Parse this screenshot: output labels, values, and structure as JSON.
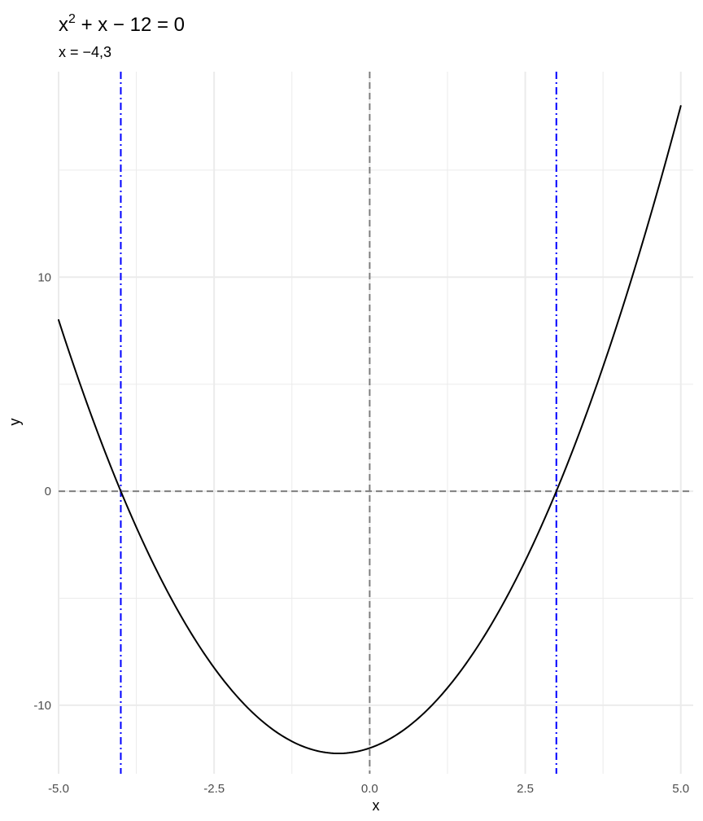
{
  "chart_data": {
    "type": "line",
    "title": {
      "base": "x",
      "sup": "2",
      "rest": " + x − 12 = 0"
    },
    "subtitle": "x = −4,3",
    "xlabel": "x",
    "ylabel": "y",
    "equation": {
      "a": 1,
      "b": 1,
      "c": -12
    },
    "x_range": [
      -5,
      5
    ],
    "xlim": [
      -5,
      5.2
    ],
    "ylim": [
      -13.2,
      19.6
    ],
    "x_ticks": [
      -5.0,
      -2.5,
      0.0,
      2.5,
      5.0
    ],
    "x_tick_labels": [
      "-5.0",
      "-2.5",
      "0.0",
      "2.5",
      "5.0"
    ],
    "x_minor_ticks": [
      -3.75,
      -1.25,
      1.25,
      3.75
    ],
    "y_ticks": [
      -10,
      0,
      10
    ],
    "y_tick_labels": [
      "-10",
      "0",
      "10"
    ],
    "y_minor_ticks": [
      -5,
      5,
      15
    ],
    "roots": [
      -4,
      3
    ],
    "reference_lines": {
      "horizontal_y": 0,
      "vertical_x": 0
    },
    "series": [
      {
        "name": "y = x^2 + x - 12",
        "color": "#000000"
      }
    ],
    "colors": {
      "curve": "#000000",
      "roots": "#0000ff",
      "axes_reference": "#7f7f7f",
      "grid": "#ebebeb"
    }
  }
}
